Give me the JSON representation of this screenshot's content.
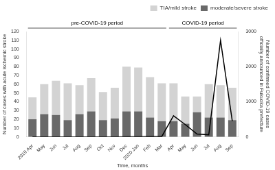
{
  "chart_data": {
    "type": "bar",
    "categories": [
      "2019 Apr",
      "May",
      "Jun",
      "Jul",
      "Aug",
      "Sep",
      "Oct",
      "Nov",
      "Dec",
      "2020 Jan",
      "Feb",
      "Mar",
      "Apr",
      "May",
      "Jun",
      "Jul",
      "Aug",
      "Sep"
    ],
    "series": [
      {
        "name": "moderate/severe stroke",
        "color": "#696969",
        "values": [
          20,
          26,
          25,
          19,
          26,
          29,
          19,
          21,
          29,
          29,
          22,
          18,
          18,
          15,
          28,
          22,
          22,
          19
        ]
      },
      {
        "name": "TIA/mild stroke",
        "color": "#d3d3d3",
        "values": [
          25,
          34,
          39,
          42,
          33,
          38,
          32,
          35,
          51,
          50,
          46,
          43,
          43,
          31,
          18,
          38,
          37,
          37
        ]
      },
      {
        "type": "line",
        "axis": "y2",
        "color": "#000000",
        "values": [
          0,
          0,
          0,
          0,
          0,
          0,
          0,
          0,
          5,
          5,
          10,
          10,
          600,
          350,
          80,
          60,
          2750,
          450
        ]
      }
    ],
    "stacked": true,
    "xlabel": "Time, months",
    "ylabel": "Number of cases with acute ischemic stroke",
    "y2label": "Number of confirmed COVID-19 cases\nofficially announced in Fukuoka prefecture",
    "ylim": [
      0,
      120
    ],
    "yticks": [
      0,
      10,
      20,
      30,
      40,
      50,
      60,
      70,
      80,
      90,
      100,
      110,
      120
    ],
    "y2lim": [
      0,
      3000
    ],
    "y2ticks": [
      0,
      1000,
      2000,
      3000
    ],
    "annotations": [
      {
        "text": "pre-COVID-19 period",
        "from": 0,
        "to": 11,
        "color": "#555555"
      },
      {
        "text": "COVID-19 period",
        "from": 12,
        "to": 17,
        "color": "#555555"
      }
    ],
    "legend": "upper right",
    "grid": false
  }
}
